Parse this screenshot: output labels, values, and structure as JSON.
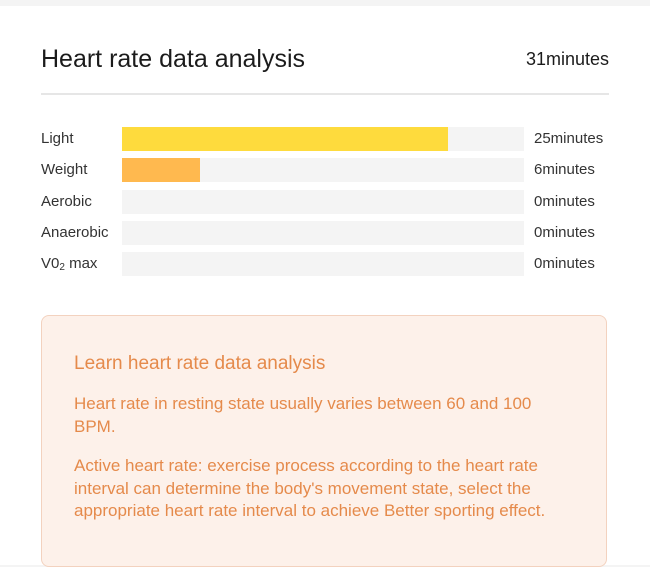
{
  "header": {
    "title": "Heart rate data analysis",
    "total": "31minutes"
  },
  "zones": [
    {
      "label": "Light",
      "value": "25minutes",
      "minutes": 25,
      "fill_fraction": 0.81,
      "color": "#fedb3d"
    },
    {
      "label": "Weight",
      "value": "6minutes",
      "minutes": 6,
      "fill_fraction": 0.195,
      "color": "#ffb94f"
    },
    {
      "label": "Aerobic",
      "value": "0minutes",
      "minutes": 0,
      "fill_fraction": 0,
      "color": "#ff9a4a"
    },
    {
      "label": "Anaerobic",
      "value": "0minutes",
      "minutes": 0,
      "fill_fraction": 0,
      "color": "#ff7a42"
    },
    {
      "label": "VO2 max",
      "label_main": "V0",
      "label_sub": "2",
      "label_tail": " max",
      "value": "0minutes",
      "minutes": 0,
      "fill_fraction": 0,
      "color": "#ff5b3a"
    }
  ],
  "info": {
    "title": "Learn heart rate data analysis",
    "paragraph1": "Heart rate in resting state usually varies between 60 and 100 BPM.",
    "paragraph2": "Active heart rate: exercise process according to the heart rate interval can determine the body's movement state, select the appropriate heart rate interval to achieve Better sporting effect."
  },
  "colors": {
    "track": "#f4f4f4",
    "info_background": "#fdf1ea",
    "info_border": "#f3d2bf",
    "info_text": "#e58a4b"
  }
}
